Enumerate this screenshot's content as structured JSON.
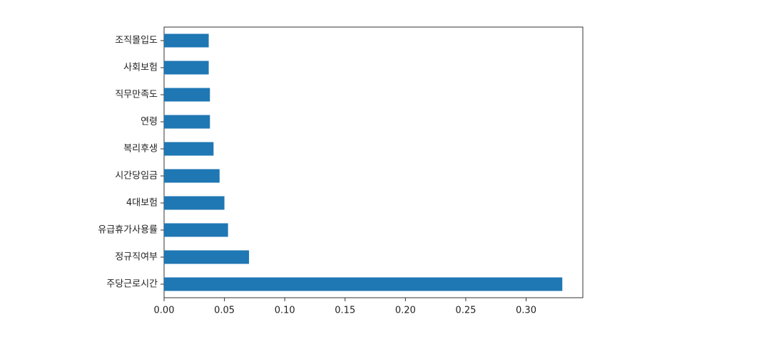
{
  "chart_data": {
    "type": "barh",
    "categories": [
      "주당근로시간",
      "정규직여부",
      "유급휴가사용률",
      "4대보험",
      "시간당임금",
      "복리후생",
      "연령",
      "직무만족도",
      "사회보험",
      "조직몰입도"
    ],
    "values": [
      0.33,
      0.0704,
      0.053,
      0.05,
      0.046,
      0.041,
      0.038,
      0.038,
      0.037,
      0.037
    ],
    "color": "#1f77b4",
    "xlim": [
      0,
      0.347
    ],
    "xticks": [
      {
        "value": 0,
        "label": "0.00"
      },
      0.05,
      {
        "value": 0.1,
        "label": "0.10"
      },
      0.15,
      {
        "value": 0.2,
        "label": "0.20"
      },
      0.25,
      {
        "value": 0.3,
        "label": "0.30"
      }
    ]
  }
}
